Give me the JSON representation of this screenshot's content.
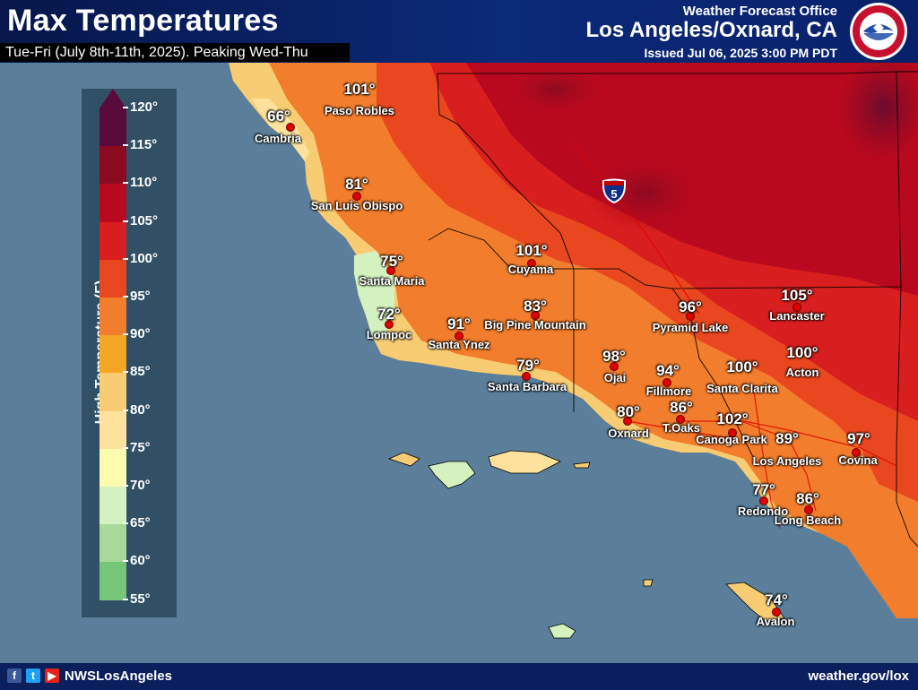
{
  "header": {
    "title": "Max Temperatures",
    "subtitle": "Tue-Fri (July 8th-11th, 2025). Peaking Wed-Thu",
    "office_line1": "Weather Forecast Office",
    "office_line2": "Los Angeles/Oxnard, CA",
    "issued": "Issued Jul 06, 2025 3:00 PM PDT"
  },
  "footer": {
    "handle": "NWSLosAngeles",
    "website": "weather.gov/lox",
    "social_icons": [
      "facebook-icon",
      "twitter-icon",
      "youtube-icon"
    ]
  },
  "legend": {
    "title": "High Temperature (F)",
    "ticks": [
      "120°",
      "115°",
      "110°",
      "105°",
      "100°",
      "95°",
      "90°",
      "85°",
      "80°",
      "75°",
      "70°",
      "65°",
      "60°",
      "55°"
    ],
    "bins": [
      {
        "range": "115-120",
        "color": "#5a0a3c"
      },
      {
        "range": "110-115",
        "color": "#8c0a20"
      },
      {
        "range": "105-110",
        "color": "#b8091e"
      },
      {
        "range": "100-105",
        "color": "#d81e1e"
      },
      {
        "range": "95-100",
        "color": "#e8471f"
      },
      {
        "range": "90-95",
        "color": "#f27d2c"
      },
      {
        "range": "85-90",
        "color": "#f5a623"
      },
      {
        "range": "80-85",
        "color": "#f8cc73"
      },
      {
        "range": "75-80",
        "color": "#fce29c"
      },
      {
        "range": "70-75",
        "color": "#fdfbb0"
      },
      {
        "range": "65-70",
        "color": "#d4f2bf"
      },
      {
        "range": "60-65",
        "color": "#a8d89a"
      },
      {
        "range": "55-60",
        "color": "#76c67a"
      }
    ]
  },
  "highway_shield": "5",
  "cities": [
    {
      "name": "Paso Robles",
      "temp": "101°"
    },
    {
      "name": "Cambria",
      "temp": "66°"
    },
    {
      "name": "San Luis Obispo",
      "temp": "81°"
    },
    {
      "name": "Santa Maria",
      "temp": "75°"
    },
    {
      "name": "Cuyama",
      "temp": "101°"
    },
    {
      "name": "Lompoc",
      "temp": "72°"
    },
    {
      "name": "Santa Ynez",
      "temp": "91°"
    },
    {
      "name": "Big Pine Mountain",
      "temp": "83°"
    },
    {
      "name": "Santa Barbara",
      "temp": "79°"
    },
    {
      "name": "Ojai",
      "temp": "98°"
    },
    {
      "name": "Pyramid Lake",
      "temp": "96°"
    },
    {
      "name": "Fillmore",
      "temp": "94°"
    },
    {
      "name": "Santa Clarita",
      "temp": "100°"
    },
    {
      "name": "Lancaster",
      "temp": "105°"
    },
    {
      "name": "Acton",
      "temp": "100°"
    },
    {
      "name": "Oxnard",
      "temp": "80°"
    },
    {
      "name": "T.Oaks",
      "temp": "86°"
    },
    {
      "name": "Canoga Park",
      "temp": "102°"
    },
    {
      "name": "Los Angeles",
      "temp": "89°"
    },
    {
      "name": "Covina",
      "temp": "97°"
    },
    {
      "name": "Redondo",
      "temp": "77°"
    },
    {
      "name": "Long Beach",
      "temp": "86°"
    },
    {
      "name": "Avalon",
      "temp": "74°"
    }
  ]
}
